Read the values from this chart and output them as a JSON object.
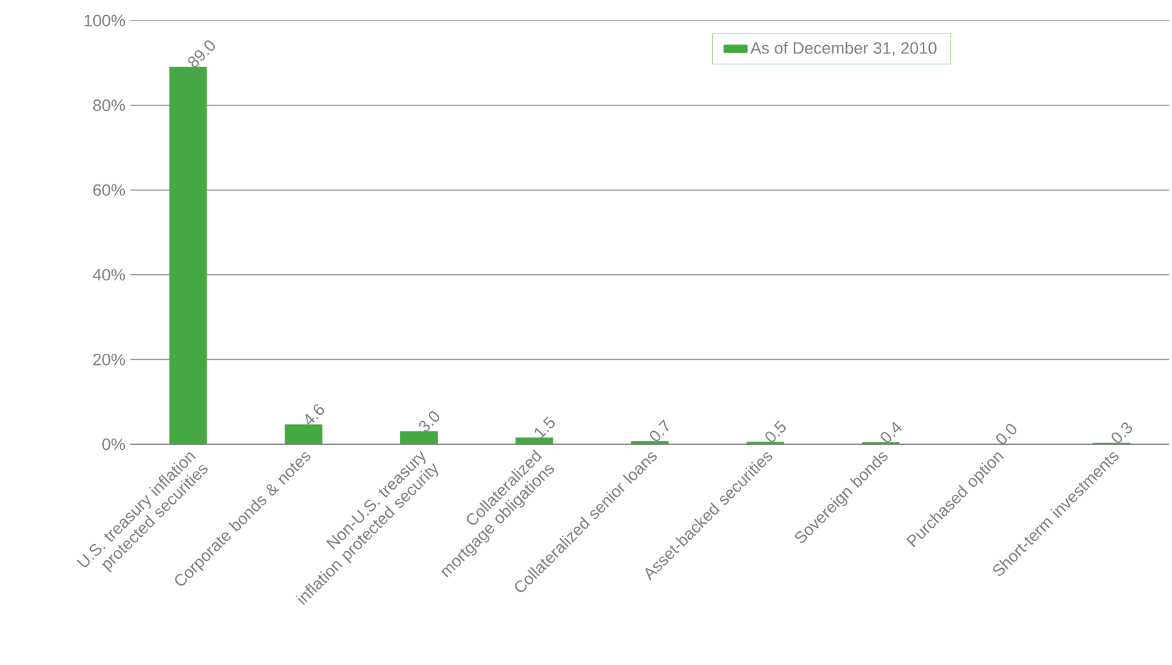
{
  "chart_data": {
    "type": "bar",
    "categories": [
      "U.S. treasury inflation protected securities",
      "Corporate bonds & notes",
      "Non-U.S. treasury inflation protected security",
      "Collateralized mortgage obligations",
      "Collateralized senior loans",
      "Asset-backed securities",
      "Sovereign bonds",
      "Purchased option",
      "Short-term investments"
    ],
    "series": [
      {
        "name": "As of December 31, 2010",
        "color": "#46a843",
        "values": [
          89.0,
          4.6,
          3.0,
          1.5,
          0.7,
          0.5,
          0.4,
          0.0,
          0.3
        ],
        "value_labels": [
          "89.0",
          "4.6",
          "3.0",
          "1.5",
          "0.7",
          "0.5",
          "0.4",
          "0.0",
          "0.3"
        ]
      }
    ],
    "ylim": [
      0,
      100
    ],
    "yticks": [
      {
        "value": 0,
        "label": "0%"
      },
      {
        "value": 20,
        "label": "20%"
      },
      {
        "value": 40,
        "label": "40%"
      },
      {
        "value": 60,
        "label": "60%"
      },
      {
        "value": 80,
        "label": "80%"
      },
      {
        "value": 100,
        "label": "100%"
      }
    ],
    "grid": "y",
    "legend": "top right"
  }
}
